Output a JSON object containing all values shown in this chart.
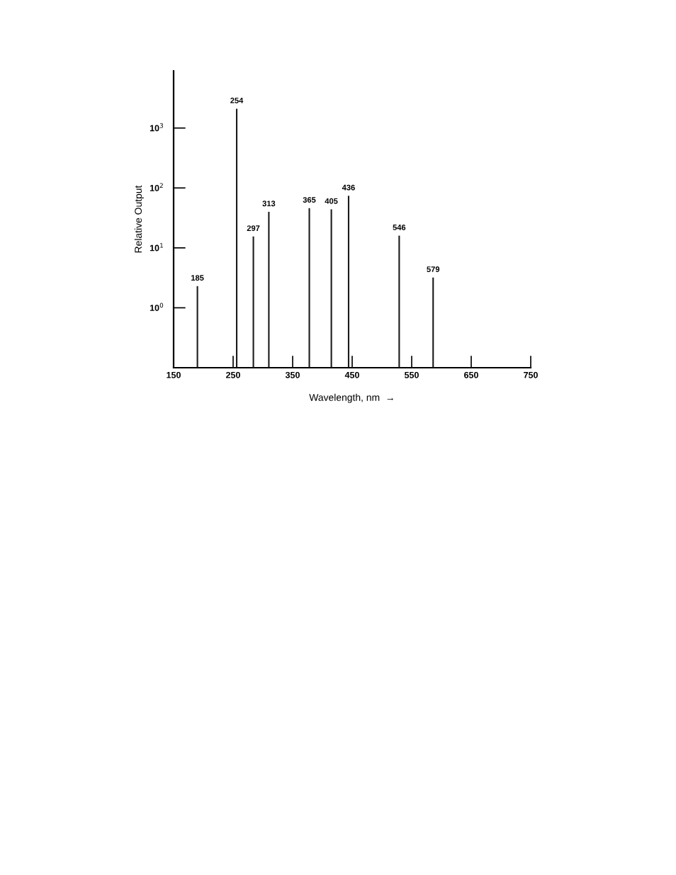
{
  "chart_data": {
    "type": "bar",
    "xlabel": "Wavelength, nm  →",
    "ylabel": "Relative Output",
    "x": [
      190,
      256,
      284,
      310,
      378,
      415,
      444,
      529,
      586
    ],
    "values": [
      2.3,
      2100,
      15.5,
      40,
      46,
      44,
      74,
      16,
      3.2
    ],
    "color": "#1a1a1a",
    "log": true,
    "xlim": [
      150,
      750
    ],
    "xticks": [
      150,
      250,
      350,
      450,
      550,
      650,
      750
    ],
    "ylim": [
      0.1,
      9000
    ],
    "yticks": [
      {
        "value": 1,
        "label": "10$^{0}$"
      },
      {
        "value": 10,
        "label": "10$^{1}$"
      },
      {
        "value": 100,
        "label": "10$^{2}$"
      },
      {
        "value": 1000,
        "label": "10$^{3}$"
      }
    ],
    "annotations": [
      {
        "text": "185",
        "x": 190,
        "y": 2.3
      },
      {
        "text": "254",
        "x": 256,
        "y": 2100
      },
      {
        "text": "297",
        "x": 284,
        "y": 15.5
      },
      {
        "text": "313",
        "x": 310,
        "y": 40
      },
      {
        "text": "365",
        "x": 378,
        "y": 46
      },
      {
        "text": "405",
        "x": 415,
        "y": 44
      },
      {
        "text": "436",
        "x": 444,
        "y": 74
      },
      {
        "text": "546",
        "x": 529,
        "y": 16
      },
      {
        "text": "579",
        "x": 586,
        "y": 3.2
      }
    ]
  }
}
